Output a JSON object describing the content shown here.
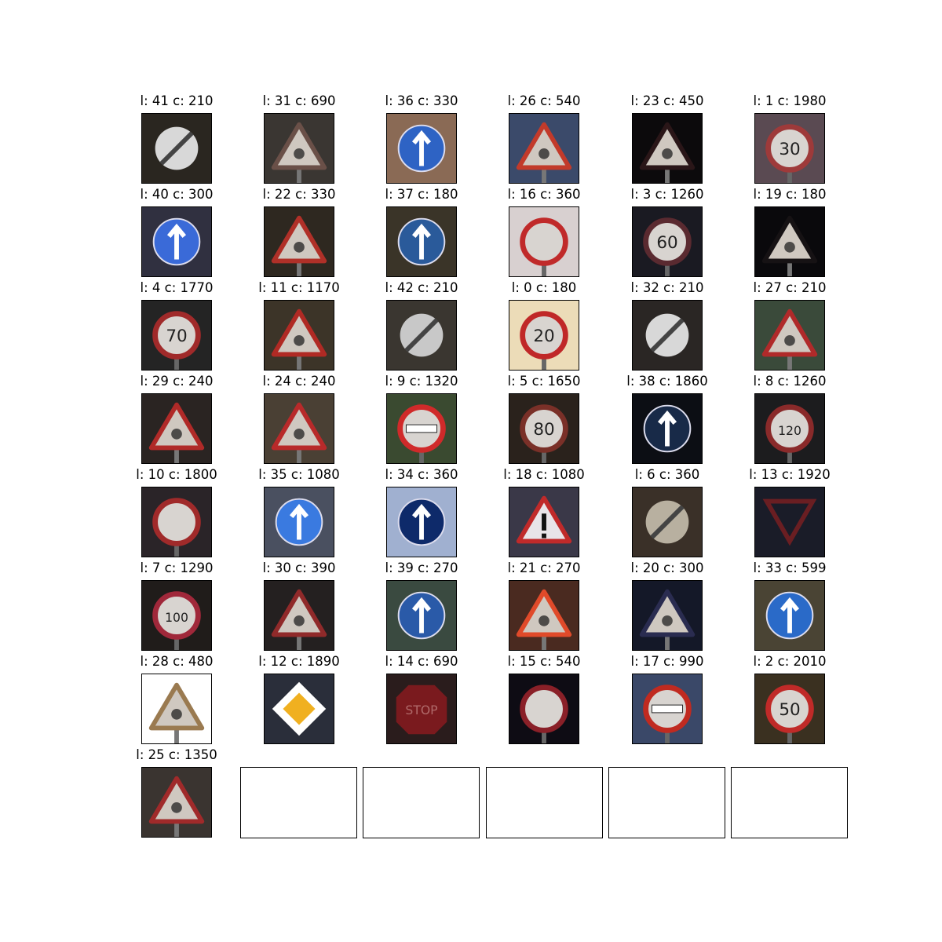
{
  "figure": {
    "cells": [
      {
        "title": "l: 41 c: 210",
        "sign": "end-no-overtaking",
        "bg": "#2a2620",
        "fg": "#d8d8d8"
      },
      {
        "title": "l: 31 c: 690",
        "sign": "warn-animal",
        "bg": "#3a3632",
        "fg": "#6a5048"
      },
      {
        "title": "l: 36 c: 330",
        "sign": "blue-straight-right",
        "bg": "#8a6a55",
        "fg": "#2e63c4"
      },
      {
        "title": "l: 26 c: 540",
        "sign": "warn-signals",
        "bg": "#3b4a6a",
        "fg": "#c23a2a"
      },
      {
        "title": "l: 23 c: 450",
        "sign": "warn-slippery",
        "bg": "#0c0a0c",
        "fg": "#2a1618"
      },
      {
        "title": "l: 1 c: 1980",
        "sign": "speed-30",
        "bg": "#5a4a52",
        "fg": "#9e3a3a"
      },
      {
        "title": "l: 40 c: 300",
        "sign": "roundabout",
        "bg": "#303040",
        "fg": "#3a6ad8"
      },
      {
        "title": "l: 22 c: 330",
        "sign": "warn-bumpy",
        "bg": "#2e2820",
        "fg": "#b03028"
      },
      {
        "title": "l: 37 c: 180",
        "sign": "blue-straight-left",
        "bg": "#3a3428",
        "fg": "#2a5a9a"
      },
      {
        "title": "l: 16 c: 360",
        "sign": "no-trucks",
        "bg": "#d8d0d0",
        "fg": "#c02a2a"
      },
      {
        "title": "l: 3 c: 1260",
        "sign": "speed-60",
        "bg": "#1a1a22",
        "fg": "#5a2a30"
      },
      {
        "title": "l: 19 c: 180",
        "sign": "warn-curve-left",
        "bg": "#0a090c",
        "fg": "#161214"
      },
      {
        "title": "l: 4 c: 1770",
        "sign": "speed-70",
        "bg": "#242424",
        "fg": "#a02a2a"
      },
      {
        "title": "l: 11 c: 1170",
        "sign": "warn-crossroads",
        "bg": "#3c3428",
        "fg": "#b02a24"
      },
      {
        "title": "l: 42 c: 210",
        "sign": "end-no-overtaking-trucks",
        "bg": "#3a3630",
        "fg": "#c8c8c8"
      },
      {
        "title": "l: 0 c: 180",
        "sign": "speed-20",
        "bg": "#ecdcb8",
        "fg": "#c02828"
      },
      {
        "title": "l: 32 c: 210",
        "sign": "end-limits",
        "bg": "#2a2624",
        "fg": "#d8d8d8"
      },
      {
        "title": "l: 27 c: 210",
        "sign": "warn-pedestrian",
        "bg": "#3a4a3a",
        "fg": "#b02a2a"
      },
      {
        "title": "l: 29 c: 240",
        "sign": "warn-bicycles",
        "bg": "#2a2422",
        "fg": "#b02a28"
      },
      {
        "title": "l: 24 c: 240",
        "sign": "warn-narrows",
        "bg": "#4a4034",
        "fg": "#b82a2a"
      },
      {
        "title": "l: 9 c: 1320",
        "sign": "no-overtaking",
        "bg": "#3a4a30",
        "fg": "#d02a2a"
      },
      {
        "title": "l: 5 c: 1650",
        "sign": "speed-80",
        "bg": "#2a221c",
        "fg": "#7a3028"
      },
      {
        "title": "l: 38 c: 1860",
        "sign": "keep-right",
        "bg": "#0c0e14",
        "fg": "#182a48"
      },
      {
        "title": "l: 8 c: 1260",
        "sign": "speed-120",
        "bg": "#1c1c1e",
        "fg": "#8a2a2a"
      },
      {
        "title": "l: 10 c: 1800",
        "sign": "no-overtaking-trucks",
        "bg": "#2a2428",
        "fg": "#a02a2a"
      },
      {
        "title": "l: 35 c: 1080",
        "sign": "blue-ahead",
        "bg": "#4a5060",
        "fg": "#3a7ae0"
      },
      {
        "title": "l: 34 c: 360",
        "sign": "blue-turn-left",
        "bg": "#a0b0d0",
        "fg": "#0e2a6a"
      },
      {
        "title": "l: 18 c: 1080",
        "sign": "warn-general",
        "bg": "#3a3848",
        "fg": "#c02a2a"
      },
      {
        "title": "l: 6 c: 360",
        "sign": "end-speed-80",
        "bg": "#3a3028",
        "fg": "#b8b0a0"
      },
      {
        "title": "l: 13 c: 1920",
        "sign": "yield",
        "bg": "#1a1c28",
        "fg": "#6a1e22"
      },
      {
        "title": "l: 7 c: 1290",
        "sign": "speed-100",
        "bg": "#201c1a",
        "fg": "#a0283a"
      },
      {
        "title": "l: 30 c: 390",
        "sign": "warn-snow",
        "bg": "#242020",
        "fg": "#902a2a"
      },
      {
        "title": "l: 39 c: 270",
        "sign": "blue-keep-left",
        "bg": "#3a4a40",
        "fg": "#2a5aa8"
      },
      {
        "title": "l: 21 c: 270",
        "sign": "warn-double-curve",
        "bg": "#4a2a20",
        "fg": "#e04a2a"
      },
      {
        "title": "l: 20 c: 300",
        "sign": "warn-curve-right",
        "bg": "#141828",
        "fg": "#2a2c50"
      },
      {
        "title": "l: 33 c: 599",
        "sign": "blue-turn-right",
        "bg": "#4a4434",
        "fg": "#2a6ac8"
      },
      {
        "title": "l: 28 c: 480",
        "sign": "warn-children",
        "bg": "#ffffff",
        "fg": "#9a7a50"
      },
      {
        "title": "l: 12 c: 1890",
        "sign": "priority-road",
        "bg": "#2a2e3a",
        "fg": "#f0b020"
      },
      {
        "title": "l: 14 c: 690",
        "sign": "stop",
        "bg": "#2a1c1c",
        "fg": "#7a1a1e"
      },
      {
        "title": "l: 15 c: 540",
        "sign": "no-vehicles",
        "bg": "#0e0c14",
        "fg": "#8a2028"
      },
      {
        "title": "l: 17 c: 990",
        "sign": "no-entry",
        "bg": "#3a4868",
        "fg": "#c02a20"
      },
      {
        "title": "l: 2 c: 2010",
        "sign": "speed-50",
        "bg": "#3a3020",
        "fg": "#c02a28"
      },
      {
        "title": "l: 25 c: 1350",
        "sign": "warn-roadworks",
        "bg": "#3a3430",
        "fg": "#a02a2a"
      }
    ],
    "empty_axes": 5
  }
}
